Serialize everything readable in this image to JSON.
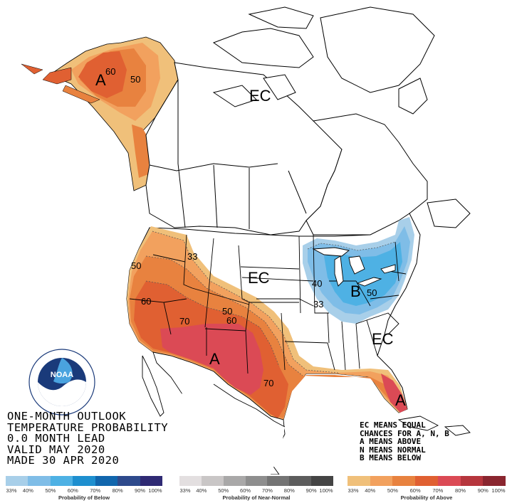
{
  "title_lines": [
    "ONE-MONTH OUTLOOK",
    "TEMPERATURE PROBABILITY",
    "0.0 MONTH LEAD",
    "VALID MAY 2020",
    "MADE 30 APR 2020"
  ],
  "legend_note_lines": [
    "EC MEANS EQUAL",
    "CHANCES FOR A, N, B",
    "A MEANS ABOVE",
    "N MEANS NORMAL",
    "B MEANS BELOW"
  ],
  "map_labels": {
    "alaska_A": "A",
    "alaska_60": "60",
    "alaska_50": "50",
    "canada_EC": "EC",
    "plains_EC": "EC",
    "southeast_EC": "EC",
    "west_50": "50",
    "west_33": "33",
    "west_60": "60",
    "west_70": "70",
    "rockies_50": "50",
    "rockies_60": "60",
    "southwest_A": "A",
    "texas_70": "70",
    "florida_A": "A",
    "east_B": "B",
    "east_40": "40",
    "east_33": "33",
    "east_50": "50"
  },
  "scales": {
    "below": {
      "caption": "Probability of Below",
      "ticks": [
        "33%",
        "40%",
        "50%",
        "60%",
        "70%",
        "80%",
        "90%",
        "100%"
      ],
      "colors": [
        "#a8cfe9",
        "#7fbde7",
        "#4eb1e4",
        "#1e8fcf",
        "#1166ad",
        "#2e4a8c",
        "#2f2a74"
      ]
    },
    "normal": {
      "caption": "Probability of Near-Normal",
      "ticks": [
        "33%",
        "40%",
        "50%",
        "60%",
        "70%",
        "80%",
        "90%",
        "100%"
      ],
      "colors": [
        "#e3dfe0",
        "#c9c6c6",
        "#a9a8a8",
        "#8e8e8e",
        "#747474",
        "#5d5d5d",
        "#444444"
      ]
    },
    "above": {
      "caption": "Probability of Above",
      "ticks": [
        "33%",
        "40%",
        "50%",
        "60%",
        "70%",
        "80%",
        "90%",
        "100%"
      ],
      "colors": [
        "#f0c07a",
        "#f2a15e",
        "#e8823f",
        "#e06032",
        "#db4a55",
        "#b6363d",
        "#8a262f"
      ]
    }
  },
  "colors": {
    "above_33": "#f0c07a",
    "above_40": "#f2a15e",
    "above_50": "#e8823f",
    "above_60": "#e06032",
    "above_70": "#db4a55",
    "below_33": "#a8cfe9",
    "below_40": "#7fbde7",
    "below_50": "#4eb1e4"
  },
  "logo_text": "NOAA"
}
